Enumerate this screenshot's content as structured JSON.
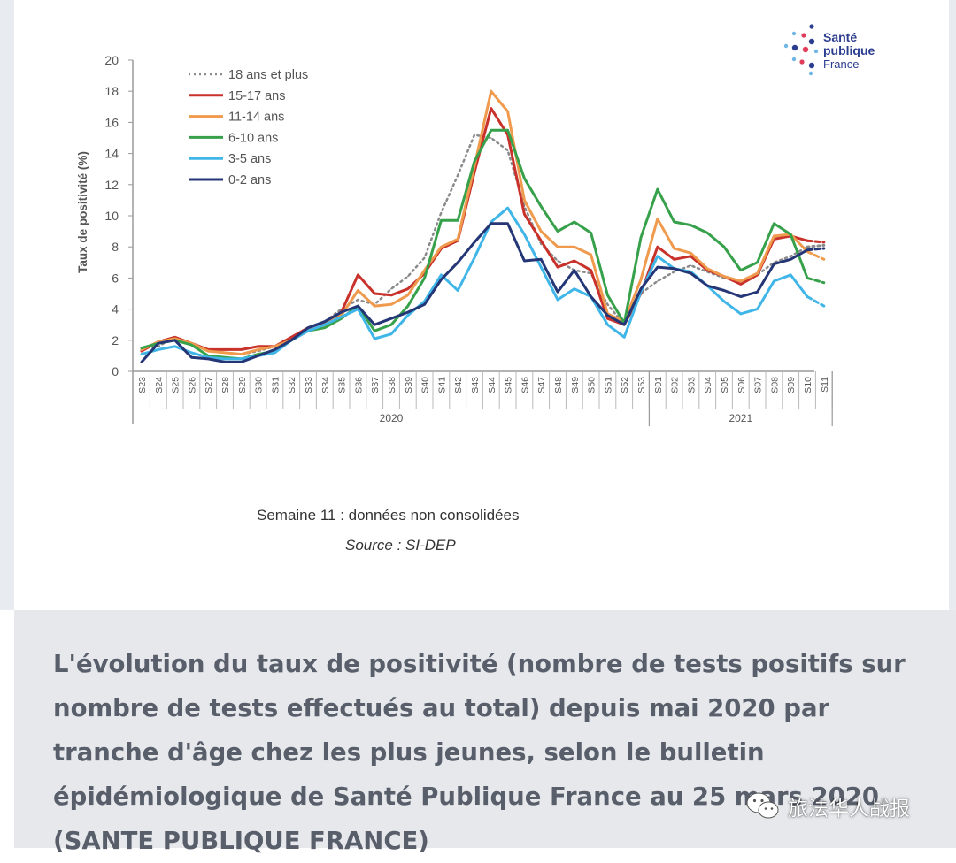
{
  "logo": {
    "line1": "Santé",
    "line2": "publique",
    "line3": "France",
    "dot_colors": [
      "#2b3d8f",
      "#e03c5a",
      "#6fb6e6"
    ]
  },
  "chart_data": {
    "type": "line",
    "title": "",
    "ylabel": "Taux de positivité (%)",
    "xlabel": "",
    "ylim": [
      0,
      20
    ],
    "yticks": [
      0,
      2,
      4,
      6,
      8,
      10,
      12,
      14,
      16,
      18,
      20
    ],
    "categories": [
      "S23",
      "S24",
      "S25",
      "S26",
      "S27",
      "S28",
      "S29",
      "S30",
      "S31",
      "S32",
      "S33",
      "S34",
      "S35",
      "S36",
      "S37",
      "S38",
      "S39",
      "S40",
      "S41",
      "S42",
      "S43",
      "S44",
      "S45",
      "S46",
      "S47",
      "S48",
      "S49",
      "S50",
      "S51",
      "S52",
      "S53",
      "S01",
      "S02",
      "S03",
      "S04",
      "S05",
      "S06",
      "S07",
      "S08",
      "S09",
      "S10",
      "S11"
    ],
    "year_groups": [
      {
        "label": "2020",
        "from": "S23",
        "to": "S53"
      },
      {
        "label": "2021",
        "from": "S01",
        "to": "S11"
      }
    ],
    "legend_position": "top-left",
    "series": [
      {
        "name": "18 ans et plus",
        "color": "#8a8a8a",
        "style": "dotted",
        "values": [
          1.5,
          1.6,
          2.2,
          1.8,
          1.4,
          1.2,
          1.1,
          1.3,
          1.6,
          2.0,
          2.6,
          3.2,
          4.0,
          4.6,
          4.3,
          5.3,
          6.1,
          7.3,
          10.2,
          12.6,
          15.2,
          15.0,
          14.2,
          10.6,
          8.2,
          7.1,
          6.5,
          6.3,
          4.3,
          3.0,
          5.0,
          5.8,
          6.4,
          6.8,
          6.4,
          6.0,
          5.8,
          6.2,
          7.0,
          7.4,
          8.0,
          8.1
        ]
      },
      {
        "name": "15-17 ans",
        "color": "#c8322a",
        "style": "solid",
        "values": [
          1.3,
          1.9,
          2.2,
          1.8,
          1.4,
          1.4,
          1.4,
          1.6,
          1.6,
          2.2,
          2.8,
          3.1,
          3.8,
          6.2,
          5.0,
          4.9,
          5.3,
          6.3,
          7.9,
          8.4,
          12.8,
          16.9,
          15.2,
          10.1,
          8.4,
          6.7,
          7.1,
          6.5,
          3.4,
          3.0,
          5.0,
          8.0,
          7.2,
          7.4,
          6.5,
          6.1,
          5.6,
          6.2,
          8.5,
          8.7,
          8.4,
          8.3
        ]
      },
      {
        "name": "11-14 ans",
        "color": "#ef9a4c",
        "style": "solid",
        "values": [
          1.4,
          1.9,
          2.1,
          1.8,
          1.3,
          1.2,
          1.1,
          1.4,
          1.6,
          2.0,
          2.6,
          3.0,
          3.6,
          5.2,
          4.2,
          4.3,
          4.9,
          6.5,
          8.0,
          8.5,
          13.2,
          18.0,
          16.7,
          11.0,
          9.0,
          8.0,
          8.0,
          7.5,
          3.7,
          3.2,
          5.9,
          9.8,
          7.9,
          7.6,
          6.6,
          6.1,
          5.8,
          6.3,
          8.7,
          8.8,
          7.7,
          7.2
        ]
      },
      {
        "name": "6-10 ans",
        "color": "#36a14a",
        "style": "solid",
        "values": [
          1.5,
          1.8,
          2.0,
          1.7,
          1.0,
          0.9,
          0.8,
          1.1,
          1.3,
          2.0,
          2.6,
          2.8,
          3.4,
          4.2,
          2.6,
          3.0,
          4.2,
          6.0,
          9.7,
          9.7,
          13.5,
          15.5,
          15.5,
          12.4,
          10.6,
          9.0,
          9.6,
          8.9,
          4.9,
          3.1,
          8.6,
          11.7,
          9.6,
          9.4,
          8.9,
          8.0,
          6.5,
          7.0,
          9.5,
          8.8,
          6.0,
          5.7
        ]
      },
      {
        "name": "3-5 ans",
        "color": "#3fb5e8",
        "style": "solid",
        "values": [
          1.1,
          1.4,
          1.6,
          1.2,
          0.9,
          0.8,
          0.8,
          1.0,
          1.2,
          2.0,
          2.6,
          3.0,
          3.5,
          4.0,
          2.1,
          2.4,
          3.6,
          4.5,
          6.2,
          5.2,
          7.3,
          9.6,
          10.5,
          8.8,
          6.7,
          4.6,
          5.3,
          4.8,
          3.0,
          2.2,
          5.1,
          7.4,
          6.6,
          6.4,
          5.5,
          4.5,
          3.7,
          4.0,
          5.8,
          6.2,
          4.8,
          4.2
        ]
      },
      {
        "name": "0-2 ans",
        "color": "#253677",
        "style": "solid",
        "values": [
          0.6,
          1.8,
          2.0,
          0.9,
          0.8,
          0.6,
          0.6,
          1.0,
          1.4,
          2.0,
          2.8,
          3.2,
          3.8,
          4.2,
          3.0,
          3.4,
          3.8,
          4.3,
          5.9,
          7.0,
          8.3,
          9.5,
          9.5,
          7.1,
          7.2,
          5.1,
          6.5,
          4.8,
          3.6,
          3.0,
          5.3,
          6.7,
          6.6,
          6.3,
          5.5,
          5.2,
          4.8,
          5.1,
          6.9,
          7.2,
          7.8,
          7.9
        ]
      }
    ]
  },
  "notes": {
    "line1": "Semaine 11 : données non consolidées",
    "line2": "Source : SI-DEP"
  },
  "caption": "L'évolution du taux de positivité (nombre de tests positifs sur nombre de tests effectués au total) depuis mai 2020 par tranche d'âge chez les plus jeunes, selon le bulletin épidémiologique de Santé Publique France au 25 mars 2020 (SANTE PUBLIQUE FRANCE)",
  "watermark": {
    "cn": "旅法华人战报"
  }
}
